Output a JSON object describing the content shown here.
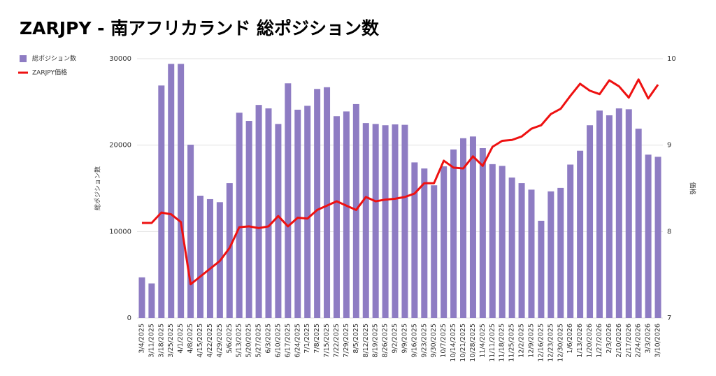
{
  "chart_data": {
    "type": "bar_line",
    "title": "ZARJPY - 南アフリカランド 総ポジション数",
    "y_label": "総ポジション数",
    "y2_label": "価格",
    "categories": [
      "3/4/2025",
      "3/11/2025",
      "3/18/2025",
      "3/25/2025",
      "4/1/2025",
      "4/8/2025",
      "4/15/2025",
      "4/22/2025",
      "4/29/2025",
      "5/6/2025",
      "5/13/2025",
      "5/20/2025",
      "5/27/2025",
      "6/3/2025",
      "6/10/2025",
      "6/17/2025",
      "6/24/2025",
      "7/1/2025",
      "7/8/2025",
      "7/15/2025",
      "7/22/2025",
      "7/29/2025",
      "8/5/2025",
      "8/12/2025",
      "8/19/2025",
      "8/26/2025",
      "9/2/2025",
      "9/9/2025",
      "9/16/2025",
      "9/23/2025",
      "9/30/2025",
      "10/7/2025",
      "10/14/2025",
      "10/21/2025",
      "10/28/2025",
      "11/4/2025",
      "11/11/2025",
      "11/18/2025",
      "11/25/2025",
      "12/2/2025",
      "12/9/2025",
      "12/16/2025",
      "12/23/2025",
      "12/30/2025",
      "1/6/2026",
      "1/13/2026",
      "1/20/2026",
      "1/27/2026",
      "2/3/2026",
      "2/10/2026",
      "2/17/2026",
      "2/24/2026",
      "3/3/2026",
      "3/10/2026"
    ],
    "series": [
      {
        "name": "総ポジション数",
        "color": "#8e7cc3",
        "kind": "bar",
        "axis": "y",
        "values": [
          4700,
          4000,
          26900,
          29400,
          29400,
          20050,
          14150,
          13750,
          13400,
          15600,
          23750,
          22800,
          24650,
          24250,
          22450,
          27150,
          24100,
          24550,
          26500,
          26700,
          23350,
          23900,
          24750,
          22550,
          22450,
          22300,
          22400,
          22350,
          18000,
          17300,
          15350,
          17550,
          19500,
          20800,
          21000,
          19650,
          17800,
          17600,
          16250,
          15600,
          14850,
          11250,
          14650,
          15050,
          17750,
          19350,
          22300,
          24000,
          23450,
          24250,
          24150,
          21900,
          18900,
          18650
        ]
      },
      {
        "name": "ZARJPY価格",
        "color": "#ee1111",
        "kind": "line",
        "axis": "y2",
        "values": [
          8.1,
          8.1,
          8.22,
          8.2,
          8.11,
          7.39,
          7.48,
          7.57,
          7.66,
          7.81,
          8.05,
          8.06,
          8.04,
          8.06,
          8.18,
          8.06,
          8.16,
          8.15,
          8.25,
          8.3,
          8.35,
          8.3,
          8.25,
          8.4,
          8.35,
          8.37,
          8.38,
          8.4,
          8.44,
          8.56,
          8.56,
          8.82,
          8.74,
          8.73,
          8.87,
          8.76,
          8.98,
          9.05,
          9.06,
          9.1,
          9.19,
          9.23,
          9.36,
          9.42,
          9.57,
          9.71,
          9.63,
          9.59,
          9.75,
          9.68,
          9.55,
          9.76,
          9.54,
          9.7
        ]
      }
    ],
    "ylim": [
      0,
      30000
    ],
    "yticks": [
      0,
      10000,
      20000,
      30000
    ],
    "y2lim": [
      7,
      10
    ],
    "y2ticks": [
      7,
      8,
      9,
      10
    ],
    "grid": true,
    "legend": "top-left"
  }
}
